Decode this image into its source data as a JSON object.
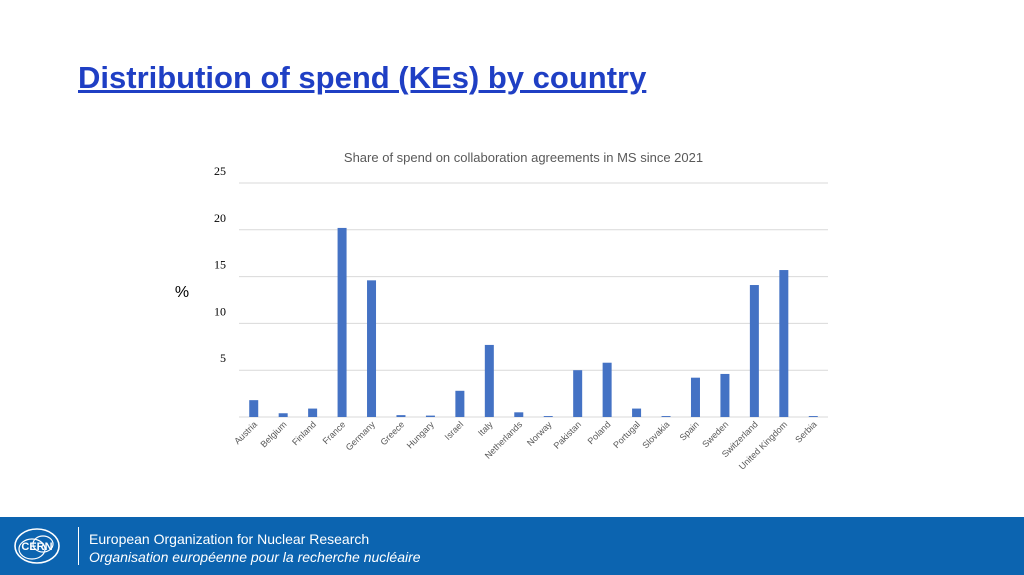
{
  "slide": {
    "title": "Distribution of spend (KEs) by country"
  },
  "chart_data": {
    "type": "bar",
    "title": "Share of spend on collaboration agreements in MS since 2021",
    "xlabel": "",
    "ylabel": "%",
    "ylim": [
      0,
      25
    ],
    "yticks": [
      "5",
      "10",
      "15",
      "20",
      "25"
    ],
    "grid": true,
    "bar_color": "#4472c4",
    "categories": [
      "Austria",
      "Belgium",
      "Finland",
      "France",
      "Germany",
      "Greece",
      "Hungary",
      "Israel",
      "Italy",
      "Netherlands",
      "Norway",
      "Pakistan",
      "Poland",
      "Portugal",
      "Slovakia",
      "Spain",
      "Sweden",
      "Switzerland",
      "United Kingdom",
      "Serbia"
    ],
    "values": [
      1.8,
      0.4,
      0.9,
      20.2,
      14.6,
      0.2,
      0.15,
      2.8,
      7.7,
      0.5,
      0.1,
      5.0,
      5.8,
      0.9,
      0.1,
      4.2,
      4.6,
      14.1,
      15.7,
      0.1
    ]
  },
  "footer": {
    "logo_text": "CERN",
    "org_en": "European Organization for Nuclear Research",
    "org_fr": "Organisation européenne pour la recherche nucléaire",
    "bg_color": "#0c64b0"
  }
}
